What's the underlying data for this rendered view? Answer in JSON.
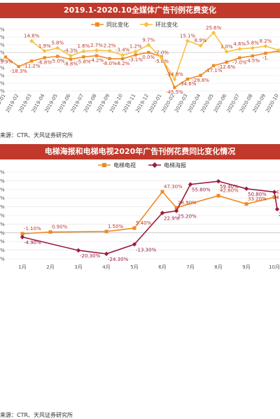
{
  "chart1_title": "2019.1-2020.10全媒体广告刊例花费变化",
  "chart1_source": "来源：CTR、天风证券研究所",
  "chart2_title": "电梯海报和电梯电视2020年广告刊例花费同比变化情况",
  "chart2_source": "来源：CTR、天风证券研究所",
  "colors": {
    "orange": "#f08a24",
    "yellow": "#f5c242",
    "darkred": "#9b1b3e",
    "title_bg": "#c0392b"
  },
  "chart_data": [
    {
      "type": "line",
      "title": "2019.1-2020.10全媒体广告刊例花费变化",
      "x": [
        "2019-01",
        "2019-02",
        "2019-03",
        "2019-04",
        "2019-05",
        "2019-06",
        "2019-07",
        "2019-08",
        "2019-09",
        "2019-10",
        "2019-11",
        "2019-12",
        "2020-01",
        "2020-02",
        "2020-03",
        "2020-04",
        "2020-05",
        "2020-06",
        "2020-07",
        "2020-08",
        "2020-09",
        "2020-10"
      ],
      "x_labels": [
        "2019-01",
        "2019-02",
        "2019-03",
        "2019-04",
        "2019-05",
        "2019-06",
        "2019-07",
        "2019-08",
        "2019-09",
        "2019-10",
        "2019-11",
        "2019-12",
        "2020-01",
        "2020-02",
        "2020-03",
        "2020-04",
        "2020-05",
        "2020-06",
        "2020-07",
        "2020-08",
        "2020-09",
        "2020-10"
      ],
      "ylim": [
        -50,
        30
      ],
      "legend_position": "top-center",
      "series": [
        {
          "name": "同比变化",
          "values": [
            -5.9,
            -18.3,
            -11.2,
            -6.8,
            -5.0,
            -8.8,
            -5.8,
            -4.2,
            -8.0,
            -8.2,
            -3.1,
            0.0,
            -5.6,
            -45.5,
            -34.6,
            -29.8,
            -17.1,
            -12.6,
            -7.0,
            -4.5,
            -1.0,
            2.0
          ],
          "labels": [
            "-5.9%",
            "-18.3%",
            "-11.2%",
            "-6.8%",
            "-5.0%",
            "-8.8%",
            "-5.8%",
            "-4.2%",
            "-8.0%",
            "-8.2%",
            "-3.1%",
            "0.0%",
            "-5.6%",
            "-45.5%",
            "-34.6%",
            "-29.8%",
            "-17.1%",
            "-12.6%",
            "-7.0%",
            "-4.5%",
            "-1.",
            ""
          ]
        },
        {
          "name": "环比变化",
          "values": [
            null,
            null,
            14.8,
            1.9,
            5.8,
            -4.3,
            1.6,
            2.7,
            2.2,
            -3.4,
            1.2,
            9.7,
            -7.0,
            -34.8,
            15.1,
            8.9,
            25.6,
            1.0,
            4.6,
            5.8,
            8.2,
            3.0
          ],
          "labels": [
            "",
            "",
            "14.8%",
            "1.9%",
            "5.8%",
            "-4.3%",
            "1.6%",
            "2.7%",
            "2.2%",
            "-3.4%",
            "1.2%",
            "9.7%",
            "-7.0%",
            "-34.8%",
            "15.1%",
            "8.9%",
            "25.6%",
            "1.0%",
            "4.6%",
            "5.8%",
            "8.2%",
            ""
          ]
        }
      ]
    },
    {
      "type": "line",
      "title": "电梯海报和电梯电视2020年广告刊例花费同比变化情况",
      "categories": [
        "1月",
        "2月",
        "3月",
        "4月",
        "5月",
        "6月",
        "7月",
        "8月",
        "9月",
        "10月"
      ],
      "ylim": [
        -30,
        70
      ],
      "legend_position": "top-center",
      "series": [
        {
          "name": "电梯电视",
          "values": [
            -1.1,
            0.9,
            null,
            1.5,
            5.4,
            47.3,
            null,
            42.8,
            33.2,
            41.0
          ],
          "labels": [
            "-1.10%",
            "0.90%",
            "",
            "1.50%",
            "5.40%",
            "47.30%",
            "",
            "42.80%",
            "33.20%",
            "41."
          ]
        },
        {
          "name": "电梯海报",
          "values": [
            -4.9,
            null,
            -20.3,
            -24.3,
            -13.3,
            22.9,
            55.8,
            59.4,
            50.8,
            47.0
          ],
          "labels": [
            "-4.90%",
            "",
            "-20.30%",
            "-24.30%",
            "-13.30%",
            "22.9%",
            "55.80%",
            "59.40%",
            "50.80%",
            "4"
          ]
        }
      ],
      "extra_points": [
        {
          "series": "电梯电视",
          "x": 5.5,
          "value": 28.9,
          "label": "28.90%"
        },
        {
          "series": "电梯海报",
          "x": 5.5,
          "value": 25.2,
          "label": "25.20%"
        },
        {
          "series": "电梯海报",
          "x": 9.1,
          "value": 27.2,
          "label": "27.20%"
        }
      ]
    }
  ]
}
